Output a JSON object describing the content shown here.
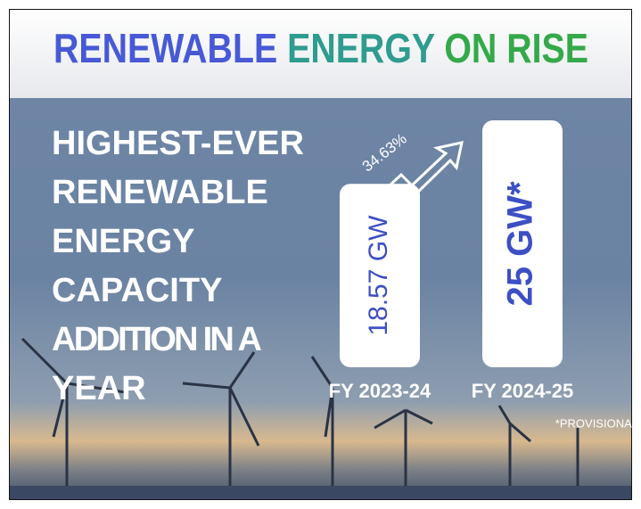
{
  "chart_data": {
    "type": "bar",
    "title": [
      "RENEWABLE",
      "ENERGY",
      "ON RISE"
    ],
    "title_colors": [
      "#4759d6",
      "#2e9c8f",
      "#34a94a"
    ],
    "subtitle": [
      "HIGHEST-EVER",
      "RENEWABLE",
      "ENERGY",
      "CAPACITY",
      "ADDITION IN A",
      "YEAR"
    ],
    "categories": [
      "FY 2023-24",
      "FY 2024-25"
    ],
    "values": [
      18.57,
      25
    ],
    "value_labels": [
      "18.57 GW",
      "25 GW*"
    ],
    "color": "#ffffff",
    "label_color": "#3d4fc4",
    "ylim": [
      0,
      25
    ],
    "annotation": "34.63%",
    "footnote": "*PROVISIONAL"
  }
}
